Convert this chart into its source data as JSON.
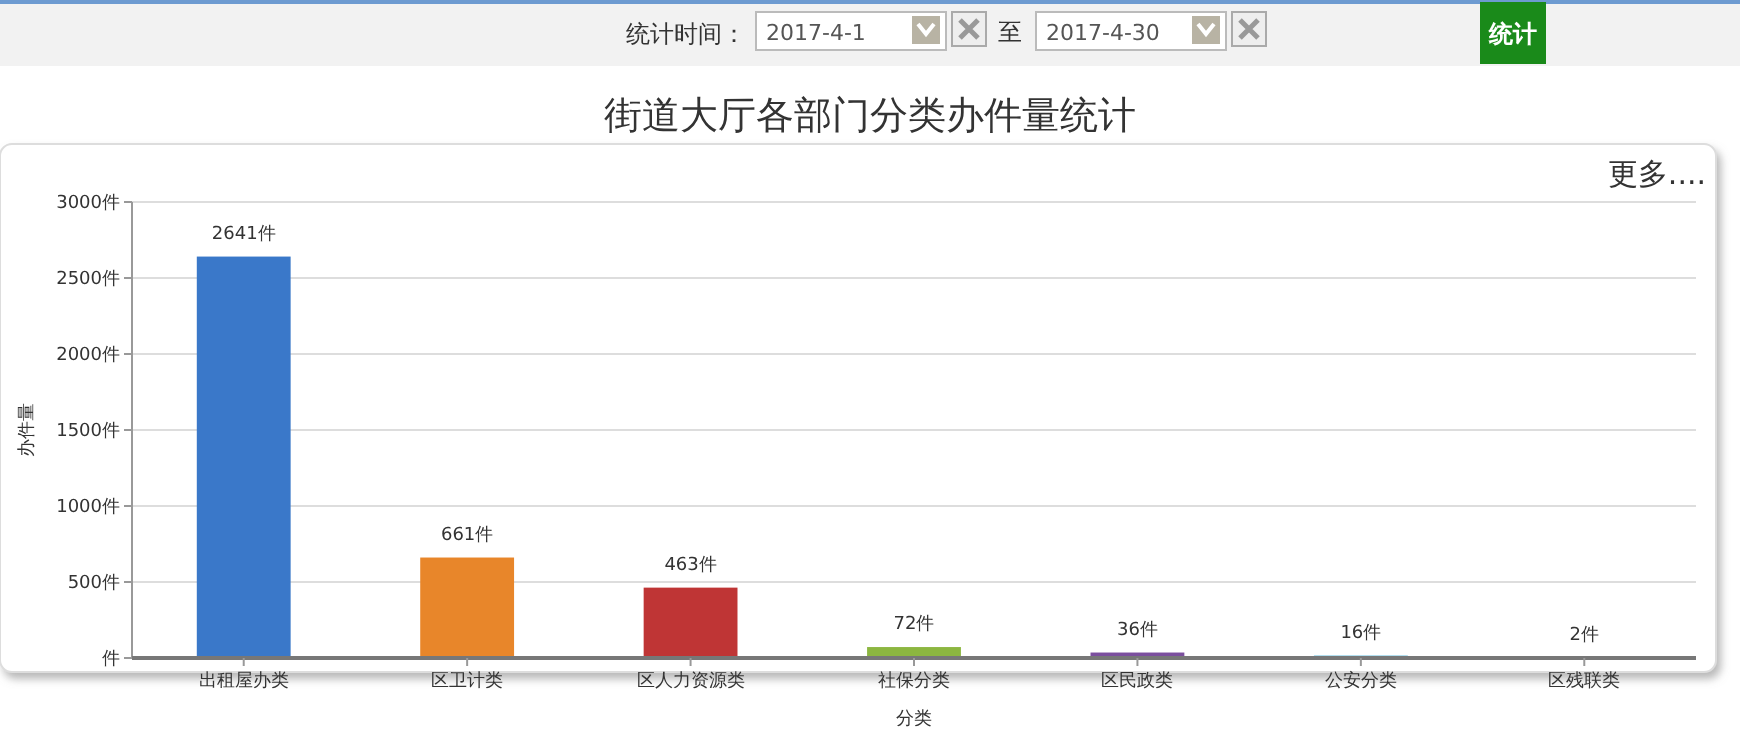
{
  "chart_data": {
    "type": "bar",
    "title": "街道大厅各部门分类办件量统计",
    "xlabel": "分类",
    "ylabel": "办件量",
    "categories": [
      "出租屋办类",
      "区卫计类",
      "区人力资源类",
      "社保分类",
      "区民政类",
      "公安分类",
      "区残联类"
    ],
    "values": [
      2641,
      661,
      463,
      72,
      36,
      16,
      2
    ],
    "value_labels": [
      "2641件",
      "661件",
      "463件",
      "72件",
      "36件",
      "16件",
      "2件"
    ],
    "colors": [
      "#3a78c9",
      "#e8862a",
      "#bf3535",
      "#8cb640",
      "#7b4f9e",
      "#4fb3d9",
      "#9a9a9a"
    ],
    "ylim": [
      0,
      3000
    ],
    "yticks": [
      {
        "value": 0,
        "label": "件"
      },
      {
        "value": 500,
        "label": "500件"
      },
      {
        "value": 1000,
        "label": "1000件"
      },
      {
        "value": 1500,
        "label": "1500件"
      },
      {
        "value": 2000,
        "label": "2000件"
      },
      {
        "value": 2500,
        "label": "2500件"
      },
      {
        "value": 3000,
        "label": "3000件"
      }
    ],
    "grid": "y",
    "annotations": [
      "统计时间：",
      "2017-4-1",
      "至",
      "2017-4-30",
      "统计",
      "更多...."
    ]
  }
}
